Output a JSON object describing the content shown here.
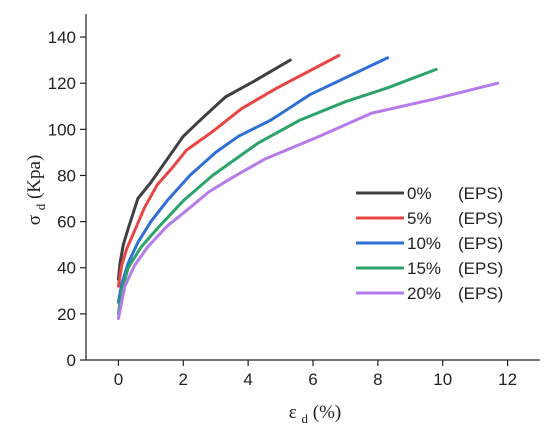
{
  "chart_data": {
    "type": "line",
    "xlabel": {
      "main": "ε",
      "sub": "d",
      "unit": "(%)"
    },
    "ylabel": {
      "main": "σ",
      "sub": "d",
      "unit": "(Kpa)"
    },
    "xlim": [
      -1,
      13
    ],
    "ylim": [
      0,
      150
    ],
    "xticks": [
      0,
      2,
      4,
      6,
      8,
      10,
      12
    ],
    "yticks": [
      0,
      20,
      40,
      60,
      80,
      100,
      120,
      140
    ],
    "legend_position": "right-middle",
    "series": [
      {
        "name": "0%",
        "tag": "(EPS)",
        "color": "#404040",
        "x": [
          0,
          0.05,
          0.15,
          0.3,
          0.6,
          1.0,
          1.5,
          2.0,
          2.6,
          3.3,
          4.2,
          5.3
        ],
        "y": [
          35,
          42,
          50,
          57,
          70,
          77,
          87,
          97,
          105,
          114,
          121,
          130
        ]
      },
      {
        "name": "5%",
        "tag": "(EPS)",
        "color": "#e84545",
        "x": [
          0,
          0.1,
          0.25,
          0.5,
          0.8,
          1.2,
          1.7,
          2.1,
          2.9,
          3.8,
          4.9,
          6.8
        ],
        "y": [
          32,
          41,
          48,
          56,
          66,
          76,
          84,
          91,
          99,
          109,
          118,
          132
        ]
      },
      {
        "name": "10%",
        "tag": "(EPS)",
        "color": "#2f6fd6",
        "x": [
          0,
          0.1,
          0.3,
          0.6,
          1.0,
          1.5,
          2.2,
          3.0,
          3.7,
          4.7,
          5.9,
          8.3
        ],
        "y": [
          25,
          33,
          42,
          51,
          60,
          69,
          80,
          90,
          97,
          104,
          115,
          131
        ]
      },
      {
        "name": "15%",
        "tag": "(EPS)",
        "color": "#2aa46a",
        "x": [
          0,
          0.1,
          0.3,
          0.7,
          1.2,
          2.0,
          2.9,
          4.3,
          5.6,
          7.0,
          8.3,
          9.8
        ],
        "y": [
          20,
          30,
          40,
          49,
          57,
          69,
          80,
          94,
          104,
          112,
          118,
          126
        ]
      },
      {
        "name": "20%",
        "tag": "(EPS)",
        "color": "#b57bea",
        "x": [
          0,
          0.2,
          0.5,
          0.9,
          1.5,
          2.2,
          2.8,
          3.5,
          4.5,
          6.2,
          7.8,
          9.7,
          11.7
        ],
        "y": [
          18,
          32,
          41,
          49,
          58,
          66,
          73,
          79,
          87,
          97,
          107,
          113,
          120
        ]
      }
    ]
  }
}
